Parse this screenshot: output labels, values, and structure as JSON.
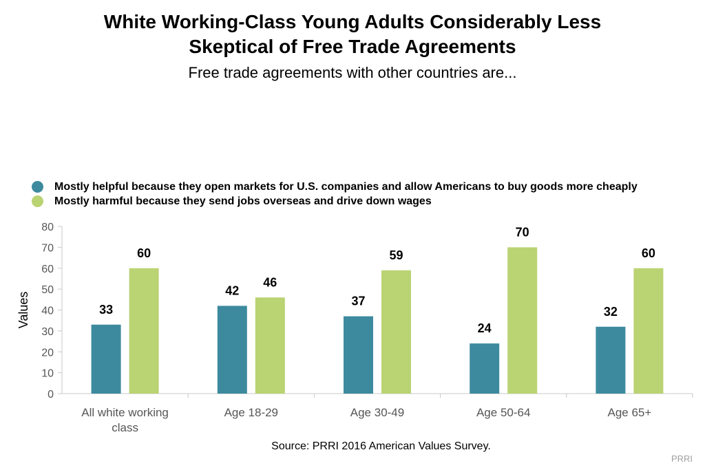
{
  "header": {
    "title_line1": "White Working-Class Young Adults Considerably Less",
    "title_line2": "Skeptical of Free Trade Agreements",
    "subtitle": "Free trade agreements with other countries are..."
  },
  "footer": {
    "source": "Source: PRRI 2016 American Values Survey.",
    "credit": "PRRI"
  },
  "colors": {
    "helpful": "#3d8a9e",
    "harmful": "#bad373"
  },
  "chart_data": {
    "type": "bar",
    "categories": [
      [
        "All white working",
        "class"
      ],
      [
        "Age 18-29"
      ],
      [
        "Age 30-49"
      ],
      [
        "Age 50-64"
      ],
      [
        "Age 65+"
      ]
    ],
    "series": [
      {
        "name": "Mostly helpful because they open markets for U.S. companies and allow Americans to buy goods more cheaply",
        "values": [
          33,
          42,
          37,
          24,
          32
        ]
      },
      {
        "name": "Mostly harmful because they send jobs overseas and drive down wages",
        "values": [
          60,
          46,
          59,
          70,
          60
        ]
      }
    ],
    "ylabel": "Values",
    "ylim": [
      0,
      80
    ],
    "yticks": [
      0,
      10,
      20,
      30,
      40,
      50,
      60,
      70,
      80
    ],
    "grid": false,
    "legend_position": "top-left"
  }
}
